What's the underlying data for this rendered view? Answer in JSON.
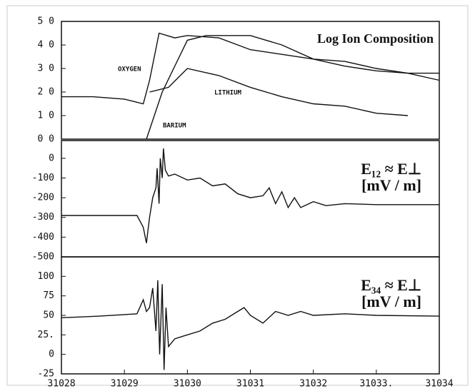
{
  "chart_data": [
    {
      "type": "line",
      "title": "Log Ion Composition",
      "xlim": [
        31028,
        31034
      ],
      "ylim": [
        0,
        50
      ],
      "yticks": [
        {
          "value": 0,
          "label": "0 0"
        },
        {
          "value": 10,
          "label": "1 0"
        },
        {
          "value": 20,
          "label": "2 0"
        },
        {
          "value": 30,
          "label": "3 0"
        },
        {
          "value": 40,
          "label": "4 0"
        },
        {
          "value": 50,
          "label": "5 0"
        }
      ],
      "series": [
        {
          "name": "OXYGEN",
          "color": "#111111",
          "x": [
            31028,
            31028.5,
            31029,
            31029.3,
            31029.4,
            31029.55,
            31029.8,
            31030,
            31030.5,
            31031,
            31031.5,
            31032,
            31032.5,
            31033,
            31033.5,
            31034
          ],
          "values": [
            18,
            18,
            17,
            15,
            25,
            45,
            43,
            44,
            43,
            38,
            36,
            34,
            31,
            29,
            28,
            28
          ]
        },
        {
          "name": "BARIUM",
          "color": "#111111",
          "x": [
            31029.35,
            31029.6,
            31030.0,
            31030.3,
            31031,
            31031.5,
            31032,
            31032.5,
            31033,
            31033.5,
            31034
          ],
          "values": [
            0,
            20,
            42,
            44,
            44,
            40,
            34,
            33,
            30,
            28,
            25
          ]
        },
        {
          "name": "LITHIUM",
          "color": "#111111",
          "x": [
            31029.4,
            31029.7,
            31030.0,
            31030.5,
            31031,
            31031.5,
            31032,
            31032.5,
            31033,
            31033.5
          ],
          "values": [
            20,
            22,
            30,
            27,
            22,
            18,
            15,
            14,
            11,
            10
          ]
        }
      ]
    },
    {
      "type": "line",
      "title": "E₁₂ ≈ E⊥",
      "subtitle": "[mV / m]",
      "xlim": [
        31028,
        31034
      ],
      "ylim": [
        -500,
        90
      ],
      "yticks": [
        -500,
        -400,
        -300,
        -200,
        -100,
        0
      ],
      "series": [
        {
          "color": "#111111",
          "x": [
            31028,
            31029,
            31029.2,
            31029.3,
            31029.35,
            31029.4,
            31029.45,
            31029.5,
            31029.52,
            31029.55,
            31029.57,
            31029.6,
            31029.62,
            31029.65,
            31029.7,
            31029.8,
            31030,
            31030.2,
            31030.4,
            31030.6,
            31030.8,
            31031,
            31031.2,
            31031.3,
            31031.4,
            31031.5,
            31031.6,
            31031.7,
            31031.8,
            31032,
            31032.2,
            31032.5,
            31033,
            31034
          ],
          "values": [
            -290,
            -290,
            -290,
            -350,
            -430,
            -300,
            -200,
            -150,
            -50,
            -230,
            0,
            -100,
            50,
            -60,
            -90,
            -80,
            -110,
            -100,
            -140,
            -130,
            -180,
            -200,
            -190,
            -150,
            -230,
            -170,
            -250,
            -200,
            -250,
            -220,
            -240,
            -230,
            -235,
            -235
          ]
        }
      ]
    },
    {
      "type": "line",
      "title": "E₃₄ ≈ E⊥",
      "subtitle": "[mV / m]",
      "xlim": [
        31028,
        31034
      ],
      "ylim": [
        -25,
        125
      ],
      "yticks": [
        -25,
        0,
        {
          "value": 25,
          "label": "25."
        },
        50,
        75,
        100
      ],
      "xticks": [
        31028,
        31029,
        31030,
        31031,
        31032,
        {
          "value": 31033,
          "label": "31033."
        },
        31034
      ],
      "series": [
        {
          "color": "#111111",
          "x": [
            31028,
            31028.6,
            31029.2,
            31029.3,
            31029.35,
            31029.4,
            31029.45,
            31029.5,
            31029.53,
            31029.56,
            31029.6,
            31029.63,
            31029.66,
            31029.7,
            31029.8,
            31030,
            31030.2,
            31030.4,
            31030.6,
            31030.8,
            31030.9,
            31031,
            31031.2,
            31031.4,
            31031.6,
            31031.8,
            31032,
            31032.5,
            31033,
            31034
          ],
          "values": [
            47,
            49,
            52,
            70,
            55,
            60,
            85,
            30,
            95,
            0,
            90,
            -20,
            60,
            10,
            20,
            25,
            30,
            40,
            45,
            55,
            60,
            50,
            40,
            55,
            50,
            55,
            50,
            52,
            50,
            49
          ]
        }
      ]
    }
  ]
}
